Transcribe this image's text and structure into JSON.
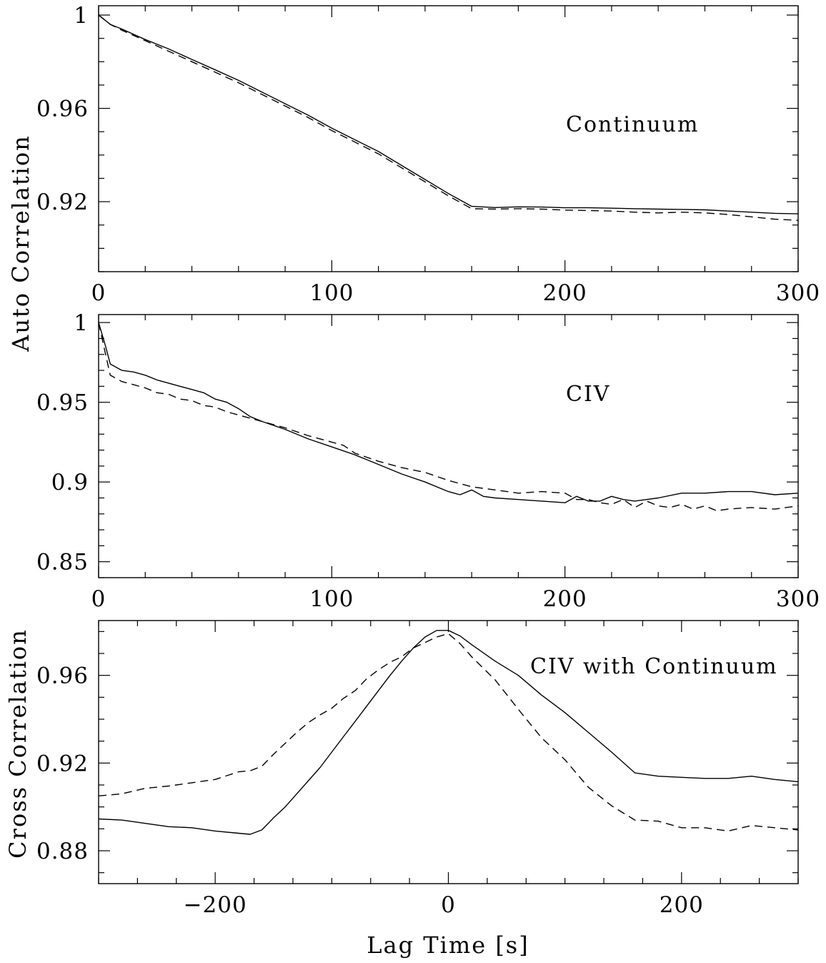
{
  "colors": {
    "line": "#000000",
    "background": "#ffffff"
  },
  "figure": {
    "ylabel_top": "Auto Correlation",
    "ylabel_bottom": "Cross Correlation",
    "xlabel_bottom": "Lag Time [s]"
  },
  "chart_data": [
    {
      "type": "line",
      "panel": "top",
      "annotation": "Continuum",
      "xlim": [
        0,
        300
      ],
      "ylim": [
        0.89,
        1.004
      ],
      "xticks": [
        0,
        100,
        200,
        300
      ],
      "xtick_labels": [
        "0",
        "100",
        "200",
        "300"
      ],
      "yticks": [
        1,
        0.96,
        0.92
      ],
      "ytick_labels": [
        "1",
        "0.96",
        "0.92"
      ],
      "grid": false,
      "legend": "none",
      "series": [
        {
          "style": "solid",
          "x": [
            0,
            5,
            10,
            20,
            30,
            40,
            50,
            60,
            70,
            80,
            90,
            100,
            110,
            120,
            130,
            140,
            150,
            160,
            170,
            180,
            190,
            200,
            210,
            220,
            230,
            240,
            250,
            260,
            270,
            280,
            290,
            300
          ],
          "y": [
            1.0,
            0.996,
            0.994,
            0.9895,
            0.9855,
            0.981,
            0.9765,
            0.972,
            0.967,
            0.962,
            0.957,
            0.9515,
            0.9465,
            0.9415,
            0.9355,
            0.9295,
            0.9235,
            0.918,
            0.9175,
            0.9178,
            0.9177,
            0.9174,
            0.9174,
            0.9172,
            0.917,
            0.9168,
            0.9167,
            0.9165,
            0.916,
            0.9155,
            0.915,
            0.9148
          ]
        },
        {
          "style": "dashed",
          "x": [
            0,
            5,
            10,
            20,
            30,
            40,
            50,
            60,
            70,
            80,
            90,
            100,
            110,
            120,
            130,
            140,
            150,
            160,
            170,
            180,
            190,
            200,
            210,
            220,
            230,
            240,
            250,
            260,
            270,
            280,
            290,
            300
          ],
          "y": [
            1.0,
            0.996,
            0.9935,
            0.989,
            0.9845,
            0.98,
            0.9755,
            0.971,
            0.966,
            0.961,
            0.956,
            0.9505,
            0.9455,
            0.9405,
            0.9345,
            0.9285,
            0.9225,
            0.917,
            0.9168,
            0.917,
            0.9168,
            0.9164,
            0.9162,
            0.916,
            0.9155,
            0.9152,
            0.9155,
            0.9152,
            0.9145,
            0.9135,
            0.9125,
            0.912
          ]
        }
      ]
    },
    {
      "type": "line",
      "panel": "middle",
      "annotation": "CIV",
      "xlim": [
        0,
        300
      ],
      "ylim": [
        0.84,
        1.005
      ],
      "xticks": [
        0,
        100,
        200,
        300
      ],
      "xtick_labels": [
        "0",
        "100",
        "200",
        "300"
      ],
      "yticks": [
        1,
        0.95,
        0.9,
        0.85
      ],
      "ytick_labels": [
        "1",
        "0.95",
        "0.9",
        "0.85"
      ],
      "grid": false,
      "legend": "none",
      "series": [
        {
          "style": "solid",
          "x": [
            0,
            3,
            5,
            10,
            15,
            20,
            25,
            30,
            35,
            40,
            45,
            50,
            55,
            60,
            65,
            70,
            80,
            90,
            100,
            110,
            120,
            130,
            140,
            150,
            155,
            160,
            165,
            170,
            180,
            190,
            200,
            205,
            210,
            215,
            220,
            225,
            230,
            240,
            250,
            260,
            270,
            280,
            290,
            300
          ],
          "y": [
            1.0,
            0.985,
            0.974,
            0.97,
            0.969,
            0.967,
            0.964,
            0.962,
            0.96,
            0.958,
            0.956,
            0.952,
            0.95,
            0.946,
            0.941,
            0.938,
            0.933,
            0.927,
            0.922,
            0.917,
            0.911,
            0.905,
            0.9,
            0.894,
            0.892,
            0.895,
            0.891,
            0.89,
            0.889,
            0.888,
            0.887,
            0.891,
            0.888,
            0.888,
            0.891,
            0.889,
            0.888,
            0.89,
            0.893,
            0.893,
            0.894,
            0.894,
            0.892,
            0.893
          ]
        },
        {
          "style": "dashed",
          "x": [
            0,
            3,
            5,
            10,
            15,
            20,
            25,
            30,
            35,
            40,
            45,
            50,
            55,
            60,
            65,
            70,
            80,
            90,
            100,
            105,
            110,
            120,
            130,
            140,
            150,
            160,
            170,
            180,
            190,
            200,
            205,
            210,
            215,
            220,
            225,
            230,
            235,
            240,
            245,
            250,
            255,
            260,
            265,
            270,
            280,
            290,
            300
          ],
          "y": [
            1.0,
            0.98,
            0.967,
            0.963,
            0.961,
            0.959,
            0.956,
            0.955,
            0.952,
            0.951,
            0.948,
            0.947,
            0.944,
            0.942,
            0.94,
            0.938,
            0.934,
            0.929,
            0.925,
            0.923,
            0.918,
            0.913,
            0.909,
            0.906,
            0.901,
            0.897,
            0.895,
            0.893,
            0.894,
            0.893,
            0.889,
            0.889,
            0.887,
            0.886,
            0.889,
            0.884,
            0.888,
            0.885,
            0.884,
            0.886,
            0.883,
            0.885,
            0.882,
            0.883,
            0.884,
            0.883,
            0.885
          ]
        }
      ]
    },
    {
      "type": "line",
      "panel": "bottom",
      "annotation": "CIV with Continuum",
      "xlim": [
        -300,
        300
      ],
      "ylim": [
        0.865,
        0.985
      ],
      "xticks": [
        -200,
        0,
        200
      ],
      "xtick_labels": [
        "−200",
        "0",
        "200"
      ],
      "yticks": [
        0.96,
        0.92,
        0.88
      ],
      "ytick_labels": [
        "0.96",
        "0.92",
        "0.88"
      ],
      "grid": false,
      "legend": "none",
      "series": [
        {
          "style": "solid",
          "x": [
            -300,
            -280,
            -260,
            -240,
            -220,
            -200,
            -180,
            -170,
            -160,
            -150,
            -140,
            -130,
            -120,
            -110,
            -100,
            -90,
            -80,
            -70,
            -60,
            -50,
            -40,
            -30,
            -20,
            -10,
            0,
            10,
            20,
            40,
            60,
            80,
            100,
            120,
            140,
            160,
            180,
            200,
            220,
            240,
            260,
            280,
            300
          ],
          "y": [
            0.8945,
            0.894,
            0.8925,
            0.891,
            0.8905,
            0.889,
            0.888,
            0.8875,
            0.8895,
            0.895,
            0.9,
            0.906,
            0.912,
            0.918,
            0.925,
            0.932,
            0.939,
            0.946,
            0.953,
            0.96,
            0.9665,
            0.9725,
            0.9775,
            0.9805,
            0.9805,
            0.978,
            0.974,
            0.9665,
            0.96,
            0.951,
            0.943,
            0.934,
            0.925,
            0.9155,
            0.914,
            0.9135,
            0.913,
            0.913,
            0.914,
            0.9125,
            0.9115
          ]
        },
        {
          "style": "dashed",
          "x": [
            -300,
            -280,
            -260,
            -240,
            -220,
            -200,
            -180,
            -170,
            -160,
            -150,
            -140,
            -130,
            -120,
            -110,
            -100,
            -90,
            -80,
            -70,
            -60,
            -50,
            -40,
            -30,
            -20,
            -10,
            0,
            10,
            20,
            40,
            60,
            80,
            100,
            120,
            140,
            160,
            180,
            200,
            220,
            240,
            260,
            280,
            300
          ],
          "y": [
            0.905,
            0.906,
            0.9085,
            0.9095,
            0.911,
            0.9125,
            0.916,
            0.9165,
            0.9185,
            0.924,
            0.929,
            0.934,
            0.9385,
            0.942,
            0.945,
            0.9495,
            0.953,
            0.9585,
            0.9625,
            0.966,
            0.9685,
            0.9725,
            0.975,
            0.9775,
            0.979,
            0.9745,
            0.9685,
            0.958,
            0.9445,
            0.9315,
            0.9215,
            0.909,
            0.9005,
            0.894,
            0.8935,
            0.8905,
            0.8905,
            0.889,
            0.8915,
            0.8905,
            0.8895
          ]
        }
      ]
    }
  ]
}
